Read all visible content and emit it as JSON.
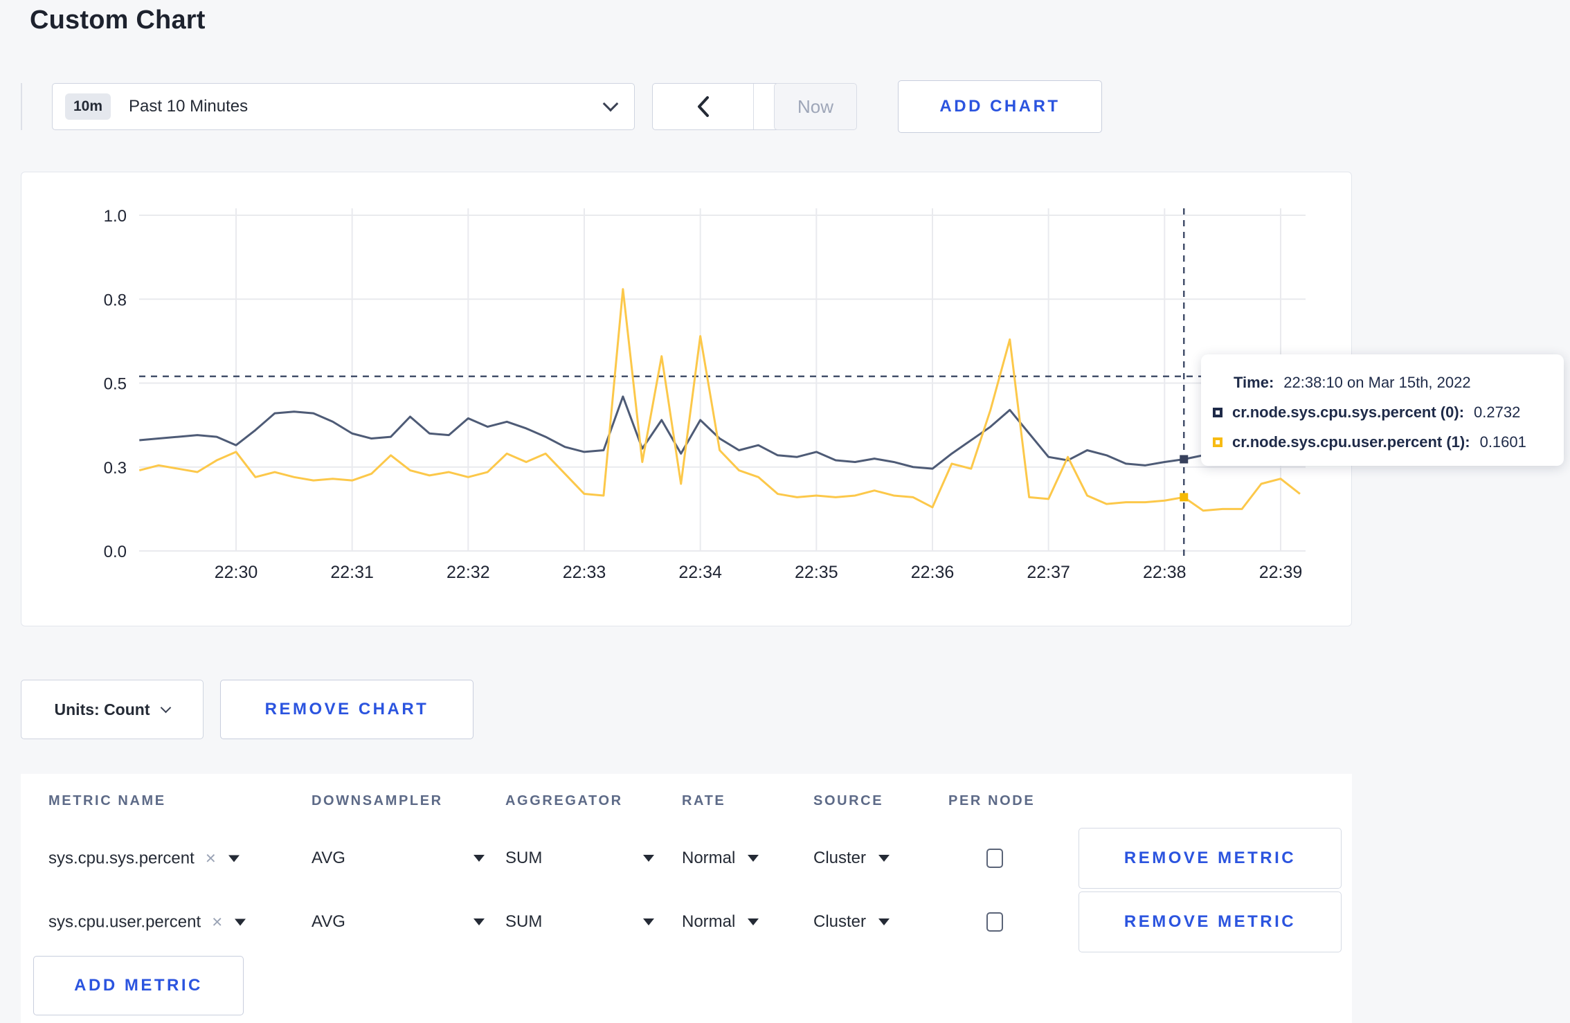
{
  "page": {
    "title": "Custom Chart"
  },
  "toolbar": {
    "time_range": {
      "badge": "10m",
      "label": "Past 10 Minutes"
    },
    "now_label": "Now",
    "add_chart_label": "ADD CHART"
  },
  "tooltip": {
    "time_label": "Time:",
    "time_value": "22:38:10 on Mar 15th, 2022",
    "series": [
      {
        "label": "cr.node.sys.cpu.sys.percent (0):",
        "value": "0.2732",
        "color": "#1e2a48"
      },
      {
        "label": "cr.node.sys.cpu.user.percent (1):",
        "value": "0.1601",
        "color": "#f7bb13"
      }
    ]
  },
  "chart_controls": {
    "units_label": "Units: Count",
    "remove_chart_label": "REMOVE CHART"
  },
  "metrics_table": {
    "headers": [
      "METRIC NAME",
      "DOWNSAMPLER",
      "AGGREGATOR",
      "RATE",
      "SOURCE",
      "PER NODE"
    ],
    "rows": [
      {
        "metric": "sys.cpu.sys.percent",
        "downsampler": "AVG",
        "aggregator": "SUM",
        "rate": "Normal",
        "source": "Cluster",
        "per_node": false,
        "remove_label": "REMOVE METRIC"
      },
      {
        "metric": "sys.cpu.user.percent",
        "downsampler": "AVG",
        "aggregator": "SUM",
        "rate": "Normal",
        "source": "Cluster",
        "per_node": false,
        "remove_label": "REMOVE METRIC"
      }
    ],
    "add_metric_label": "ADD METRIC"
  },
  "chart_data": {
    "type": "line",
    "title": "",
    "xlabel": "",
    "ylabel": "",
    "ylim": [
      0,
      1
    ],
    "grid": true,
    "legend_position": "none",
    "x_unit": "seconds relative to 22:30:00, Mar 15th 2022",
    "x_ticks": [
      {
        "label": "22:30",
        "t": 0
      },
      {
        "label": "22:31",
        "t": 60
      },
      {
        "label": "22:32",
        "t": 120
      },
      {
        "label": "22:33",
        "t": 180
      },
      {
        "label": "22:34",
        "t": 240
      },
      {
        "label": "22:35",
        "t": 300
      },
      {
        "label": "22:36",
        "t": 360
      },
      {
        "label": "22:37",
        "t": 420
      },
      {
        "label": "22:38",
        "t": 480
      },
      {
        "label": "22:39",
        "t": 540
      }
    ],
    "y_ticks": [
      {
        "label": "0.0",
        "v": 0
      },
      {
        "label": "0.3",
        "v": 0.25
      },
      {
        "label": "0.5",
        "v": 0.5
      },
      {
        "label": "0.8",
        "v": 0.75
      },
      {
        "label": "1.0",
        "v": 1
      }
    ],
    "crosshair": {
      "t": 490,
      "time": "22:38:10",
      "h_value": 0.52
    },
    "hover_points": [
      {
        "series": 0,
        "t": 490,
        "v": 0.2732
      },
      {
        "series": 1,
        "t": 490,
        "v": 0.1601
      }
    ],
    "series": [
      {
        "name": "cr.node.sys.cpu.sys.percent",
        "color": "#4e5b76",
        "points": [
          [
            -50,
            0.33
          ],
          [
            -40,
            0.335
          ],
          [
            -30,
            0.34
          ],
          [
            -20,
            0.345
          ],
          [
            -10,
            0.34
          ],
          [
            0,
            0.315
          ],
          [
            10,
            0.36
          ],
          [
            20,
            0.41
          ],
          [
            30,
            0.415
          ],
          [
            40,
            0.41
          ],
          [
            50,
            0.385
          ],
          [
            60,
            0.35
          ],
          [
            70,
            0.335
          ],
          [
            80,
            0.34
          ],
          [
            90,
            0.4
          ],
          [
            100,
            0.35
          ],
          [
            110,
            0.345
          ],
          [
            120,
            0.395
          ],
          [
            130,
            0.37
          ],
          [
            140,
            0.385
          ],
          [
            150,
            0.365
          ],
          [
            160,
            0.34
          ],
          [
            170,
            0.31
          ],
          [
            180,
            0.295
          ],
          [
            190,
            0.3
          ],
          [
            200,
            0.46
          ],
          [
            210,
            0.305
          ],
          [
            220,
            0.39
          ],
          [
            230,
            0.29
          ],
          [
            240,
            0.39
          ],
          [
            250,
            0.335
          ],
          [
            260,
            0.3
          ],
          [
            270,
            0.315
          ],
          [
            280,
            0.285
          ],
          [
            290,
            0.28
          ],
          [
            300,
            0.295
          ],
          [
            310,
            0.27
          ],
          [
            320,
            0.265
          ],
          [
            330,
            0.275
          ],
          [
            340,
            0.265
          ],
          [
            350,
            0.25
          ],
          [
            360,
            0.245
          ],
          [
            370,
            0.29
          ],
          [
            380,
            0.33
          ],
          [
            390,
            0.37
          ],
          [
            400,
            0.42
          ],
          [
            410,
            0.35
          ],
          [
            420,
            0.28
          ],
          [
            430,
            0.27
          ],
          [
            440,
            0.3
          ],
          [
            450,
            0.285
          ],
          [
            460,
            0.26
          ],
          [
            470,
            0.255
          ],
          [
            480,
            0.265
          ],
          [
            490,
            0.2732
          ],
          [
            500,
            0.285
          ],
          [
            510,
            0.295
          ],
          [
            520,
            0.29
          ],
          [
            530,
            0.3
          ],
          [
            540,
            0.3
          ],
          [
            550,
            0.295
          ]
        ]
      },
      {
        "name": "cr.node.sys.cpu.user.percent",
        "color": "#fcc84a",
        "points": [
          [
            -50,
            0.24
          ],
          [
            -40,
            0.255
          ],
          [
            -30,
            0.245
          ],
          [
            -20,
            0.235
          ],
          [
            -10,
            0.27
          ],
          [
            0,
            0.295
          ],
          [
            10,
            0.22
          ],
          [
            20,
            0.235
          ],
          [
            30,
            0.22
          ],
          [
            40,
            0.21
          ],
          [
            50,
            0.215
          ],
          [
            60,
            0.21
          ],
          [
            70,
            0.23
          ],
          [
            80,
            0.285
          ],
          [
            90,
            0.24
          ],
          [
            100,
            0.225
          ],
          [
            110,
            0.235
          ],
          [
            120,
            0.22
          ],
          [
            130,
            0.235
          ],
          [
            140,
            0.29
          ],
          [
            150,
            0.265
          ],
          [
            160,
            0.29
          ],
          [
            170,
            0.23
          ],
          [
            180,
            0.17
          ],
          [
            190,
            0.165
          ],
          [
            200,
            0.78
          ],
          [
            210,
            0.265
          ],
          [
            220,
            0.58
          ],
          [
            230,
            0.2
          ],
          [
            240,
            0.64
          ],
          [
            250,
            0.3
          ],
          [
            260,
            0.24
          ],
          [
            270,
            0.22
          ],
          [
            280,
            0.17
          ],
          [
            290,
            0.16
          ],
          [
            300,
            0.165
          ],
          [
            310,
            0.16
          ],
          [
            320,
            0.165
          ],
          [
            330,
            0.18
          ],
          [
            340,
            0.165
          ],
          [
            350,
            0.16
          ],
          [
            360,
            0.13
          ],
          [
            370,
            0.26
          ],
          [
            380,
            0.245
          ],
          [
            390,
            0.42
          ],
          [
            400,
            0.63
          ],
          [
            410,
            0.16
          ],
          [
            420,
            0.155
          ],
          [
            430,
            0.28
          ],
          [
            440,
            0.165
          ],
          [
            450,
            0.14
          ],
          [
            460,
            0.145
          ],
          [
            470,
            0.145
          ],
          [
            480,
            0.15
          ],
          [
            490,
            0.1601
          ],
          [
            500,
            0.12
          ],
          [
            510,
            0.125
          ],
          [
            520,
            0.125
          ],
          [
            530,
            0.2
          ],
          [
            540,
            0.215
          ],
          [
            550,
            0.17
          ]
        ]
      }
    ]
  }
}
